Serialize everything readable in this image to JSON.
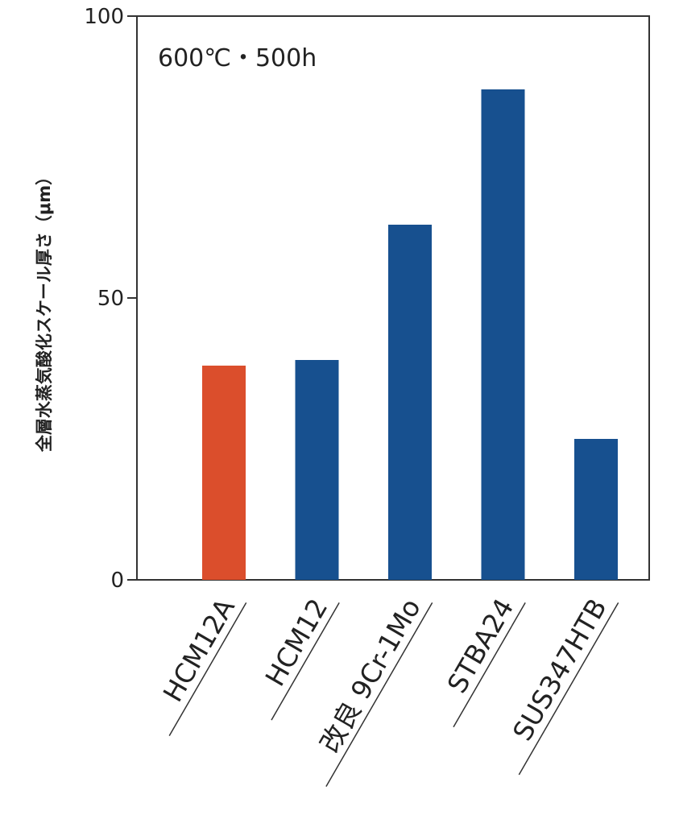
{
  "chart_data": {
    "type": "bar",
    "title": "",
    "annotation": "600℃・500h",
    "ylabel": "全層水蒸気酸化スケール厚さ（μm）",
    "xlabel": "",
    "ylim": [
      0,
      100
    ],
    "yticks": [
      0,
      50,
      100
    ],
    "categories": [
      "HCM12A",
      "HCM12",
      "改良 9Cr-1Mo",
      "STBA24",
      "SUS347HTB"
    ],
    "values": [
      38,
      39,
      63,
      87,
      25
    ],
    "colors": [
      "#db4e2c",
      "#17508f",
      "#17508f",
      "#17508f",
      "#17508f"
    ],
    "grid": false,
    "legend": "none"
  }
}
